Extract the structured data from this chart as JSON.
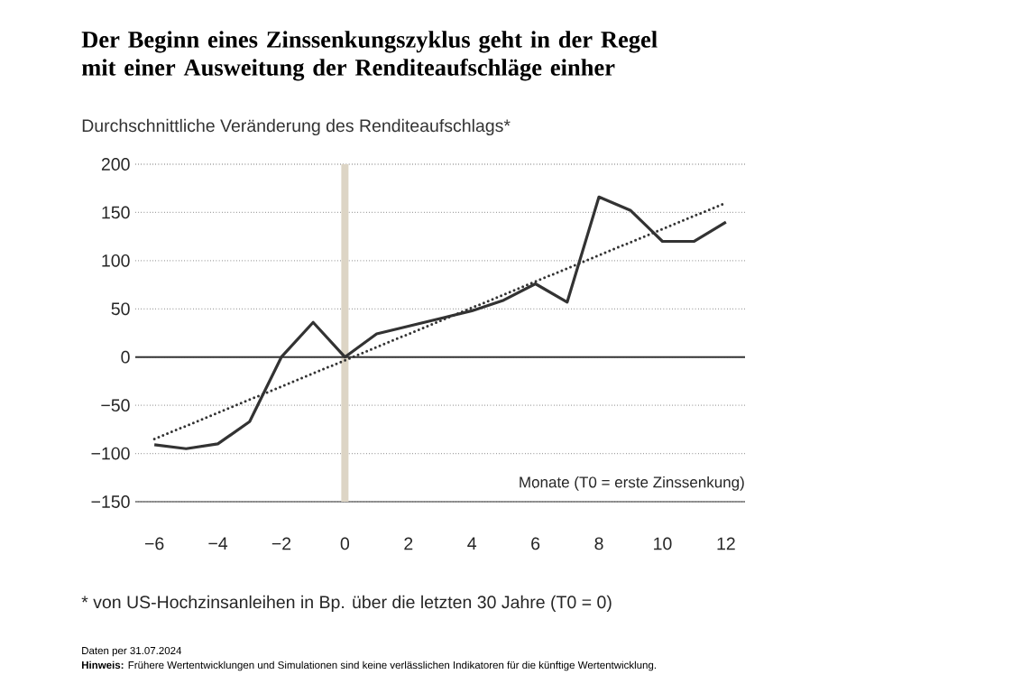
{
  "chart_data": {
    "type": "line",
    "title": "Der Beginn eines Zinssenkungszyklus geht in der Regel mit einer Ausweitung der Renditeaufschläge einher",
    "subtitle": "Durchschnittliche Veränderung des Renditeaufschlags*",
    "xlabel": "Monate (T0 = erste Zinssenkung)",
    "annotations": [
      "* von US-Hochzinsanleihen in Bp. über die letzten 30 Jahre (T0 = 0)",
      "Daten per 31.07.2024",
      "**Hinweis:** Frühere Wertentwicklungen und Simulationen sind keine verlässlichen Indikatoren für die künftige Wertentwicklung."
    ],
    "x": [
      -6,
      -5,
      -4,
      -3,
      -2,
      -1,
      0,
      1,
      2,
      3,
      4,
      5,
      6,
      7,
      8,
      9,
      10,
      11,
      12
    ],
    "series": [
      {
        "color": "#333333",
        "line_style": "solid",
        "values": [
          -91,
          -95,
          -90,
          -67,
          0,
          36,
          0,
          24,
          32,
          40,
          48,
          59,
          76,
          57,
          166,
          152,
          120,
          120,
          140
        ]
      },
      {
        "color": "#333333",
        "line_style": "dotted",
        "x": [
          -6,
          12
        ],
        "values": [
          -85,
          160
        ]
      }
    ],
    "xlim": [
      -6.6,
      12.6
    ],
    "ylim": [
      -150,
      200
    ],
    "xticks": [
      {
        "value": -6,
        "label": "−6"
      },
      {
        "value": -4,
        "label": "−4"
      },
      {
        "value": -2,
        "label": "−2"
      },
      0,
      2,
      4,
      6,
      8,
      10,
      12
    ],
    "yticks": [
      {
        "value": -150,
        "label": "−150"
      },
      {
        "value": -100,
        "label": "−100"
      },
      {
        "value": -50,
        "label": "−50"
      },
      0,
      50,
      100,
      150,
      200
    ],
    "ref_lines": [
      {
        "axis": "x",
        "value": 0,
        "color": "#ddd5c5"
      },
      {
        "axis": "y",
        "value": 0,
        "color": "#333333"
      }
    ],
    "grid": "y",
    "marker": "none"
  }
}
